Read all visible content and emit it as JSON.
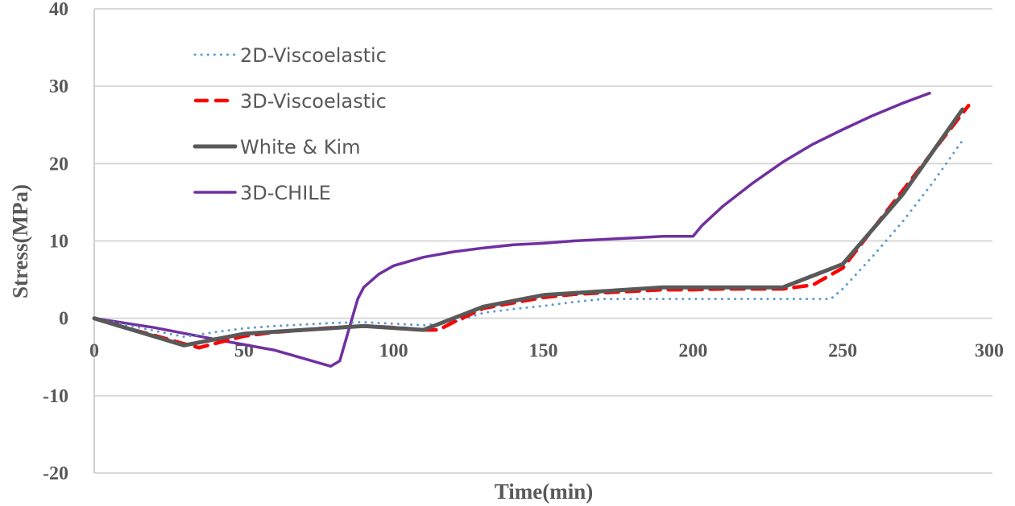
{
  "chart_data": {
    "type": "line",
    "title": "",
    "xlabel": "Time(min)",
    "ylabel": "Stress(MPa)",
    "xlim": [
      0,
      300
    ],
    "ylim": [
      -20,
      40
    ],
    "x_ticks": [
      "0",
      "50",
      "100",
      "150",
      "200",
      "250",
      "300"
    ],
    "x_tick_values": [
      0,
      50,
      100,
      150,
      200,
      250,
      300
    ],
    "y_ticks": [
      "40",
      "30",
      "20",
      "10",
      "0",
      "-10",
      "-20"
    ],
    "y_tick_values": [
      40,
      30,
      20,
      10,
      0,
      -10,
      -20
    ],
    "grid": "horizontal",
    "legend_position": "top-left",
    "series": [
      {
        "name": "2D-Viscoelastic",
        "color": "#5b9bd5",
        "style": "dotted",
        "x": [
          0,
          10,
          20,
          30,
          40,
          50,
          60,
          70,
          80,
          90,
          100,
          110,
          120,
          130,
          140,
          150,
          160,
          170,
          180,
          190,
          200,
          210,
          220,
          230,
          240,
          246,
          250,
          260,
          270,
          280,
          290
        ],
        "y": [
          0,
          -0.8,
          -1.6,
          -2.4,
          -1.8,
          -1.3,
          -1.0,
          -0.8,
          -0.6,
          -0.5,
          -0.7,
          -0.9,
          -0.5,
          0.7,
          1.2,
          1.6,
          2.1,
          2.5,
          2.5,
          2.5,
          2.5,
          2.5,
          2.5,
          2.5,
          2.5,
          2.5,
          3.8,
          8.0,
          12.5,
          17.5,
          23.0
        ]
      },
      {
        "name": "3D-Viscoelastic",
        "color": "#ff0000",
        "style": "dashed",
        "x": [
          0,
          10,
          20,
          30,
          35,
          40,
          50,
          60,
          70,
          80,
          90,
          100,
          110,
          115,
          120,
          130,
          140,
          150,
          160,
          170,
          180,
          190,
          200,
          210,
          220,
          230,
          240,
          250,
          260,
          270,
          280,
          292
        ],
        "y": [
          0,
          -1.2,
          -2.2,
          -3.3,
          -3.8,
          -3.3,
          -2.3,
          -1.8,
          -1.5,
          -1.2,
          -1.0,
          -1.2,
          -1.5,
          -1.5,
          -0.5,
          1.3,
          2.0,
          2.7,
          3.1,
          3.3,
          3.5,
          3.7,
          3.7,
          3.8,
          3.8,
          3.8,
          4.3,
          6.5,
          11.5,
          16.5,
          21.5,
          27.5
        ]
      },
      {
        "name": "White & Kim",
        "color": "#595959",
        "style": "solid",
        "x": [
          0,
          30,
          50,
          90,
          110,
          130,
          150,
          170,
          190,
          210,
          230,
          250,
          270,
          290
        ],
        "y": [
          0,
          -3.5,
          -2.0,
          -1.0,
          -1.5,
          1.5,
          3.0,
          3.5,
          4.0,
          4.0,
          4.0,
          7.0,
          16.0,
          27.0
        ]
      },
      {
        "name": "3D-CHILE",
        "color": "#7030a0",
        "style": "solid",
        "x": [
          0,
          20,
          40,
          60,
          79,
          82,
          85,
          88,
          90,
          95,
          100,
          110,
          120,
          130,
          140,
          150,
          160,
          170,
          180,
          190,
          200,
          203,
          210,
          220,
          230,
          240,
          250,
          260,
          270,
          279
        ],
        "y": [
          0,
          -1.2,
          -2.7,
          -4.1,
          -6.2,
          -5.5,
          -1.5,
          2.5,
          4.0,
          5.7,
          6.8,
          7.9,
          8.6,
          9.1,
          9.5,
          9.7,
          10.0,
          10.2,
          10.4,
          10.6,
          10.6,
          12.0,
          14.5,
          17.5,
          20.2,
          22.5,
          24.4,
          26.2,
          27.8,
          29.1
        ]
      }
    ]
  }
}
